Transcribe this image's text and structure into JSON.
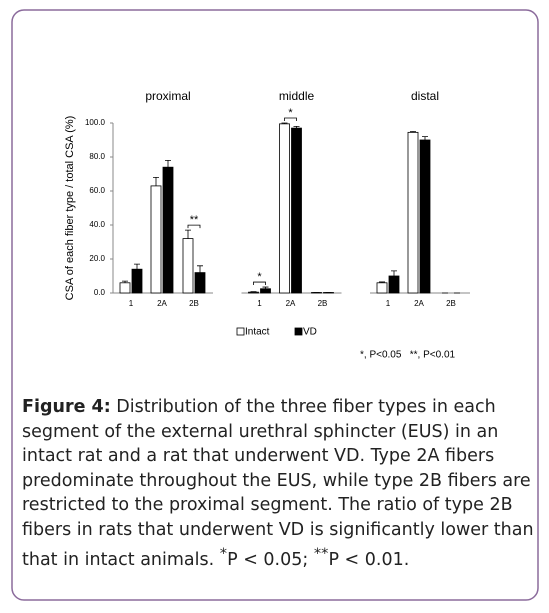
{
  "chart_data": {
    "type": "bar",
    "ylabel": "CSA of each fiber type / total CSA (%)",
    "ylim": [
      0,
      100
    ],
    "yticks": [
      {
        "value": 0,
        "label": "0.0"
      },
      {
        "value": 20,
        "label": "20.0"
      },
      {
        "value": 40,
        "label": "40.0"
      },
      {
        "value": 60,
        "label": "60.0"
      },
      {
        "value": 80,
        "label": "80.0"
      },
      {
        "value": 100,
        "label": "100.0"
      }
    ],
    "legend_position": "bottom",
    "series": [
      {
        "name": "Intact",
        "color": "#ffffff"
      },
      {
        "name": "VD",
        "color": "#000000"
      }
    ],
    "panels": [
      {
        "title": "proximal",
        "categories": [
          "1",
          "2A",
          "2B"
        ],
        "values": [
          [
            6,
            63,
            32
          ],
          [
            14,
            74,
            12
          ]
        ],
        "errors": [
          [
            1,
            5,
            5
          ],
          [
            3,
            4,
            4
          ]
        ],
        "significance": [
          null,
          null,
          "**"
        ]
      },
      {
        "title": "middle",
        "categories": [
          "1",
          "2A",
          "2B"
        ],
        "values": [
          [
            0.5,
            99.5,
            0.3
          ],
          [
            2.5,
            97,
            0.3
          ]
        ],
        "errors": [
          [
            0.3,
            0.5,
            0
          ],
          [
            1,
            1,
            0
          ]
        ],
        "significance": [
          "*",
          "*",
          null
        ]
      },
      {
        "title": "distal",
        "categories": [
          "1",
          "2A",
          "2B"
        ],
        "values": [
          [
            6,
            94.5,
            0
          ],
          [
            10,
            90,
            0
          ]
        ],
        "errors": [
          [
            0.5,
            0.5,
            0
          ],
          [
            3,
            2,
            0
          ]
        ],
        "significance": [
          null,
          null,
          null
        ]
      }
    ],
    "note": "*, P<0.05   **, P<0.01"
  },
  "caption": {
    "label": "Figure 4:",
    "text": "Distribution of the three fiber types in each segment of the external urethral sphincter (EUS) in an intact rat and a rat that underwent VD. Type 2A fibers predominate throughout the EUS, while type 2B fibers are restricted to the proximal segment. The ratio of type 2B fibers in rats that underwent VD is significantly lower than that in intact animals.",
    "footnotes": [
      {
        "mark": "*",
        "text": "P < 0.05;"
      },
      {
        "mark": "**",
        "text": "P < 0.01."
      }
    ]
  }
}
